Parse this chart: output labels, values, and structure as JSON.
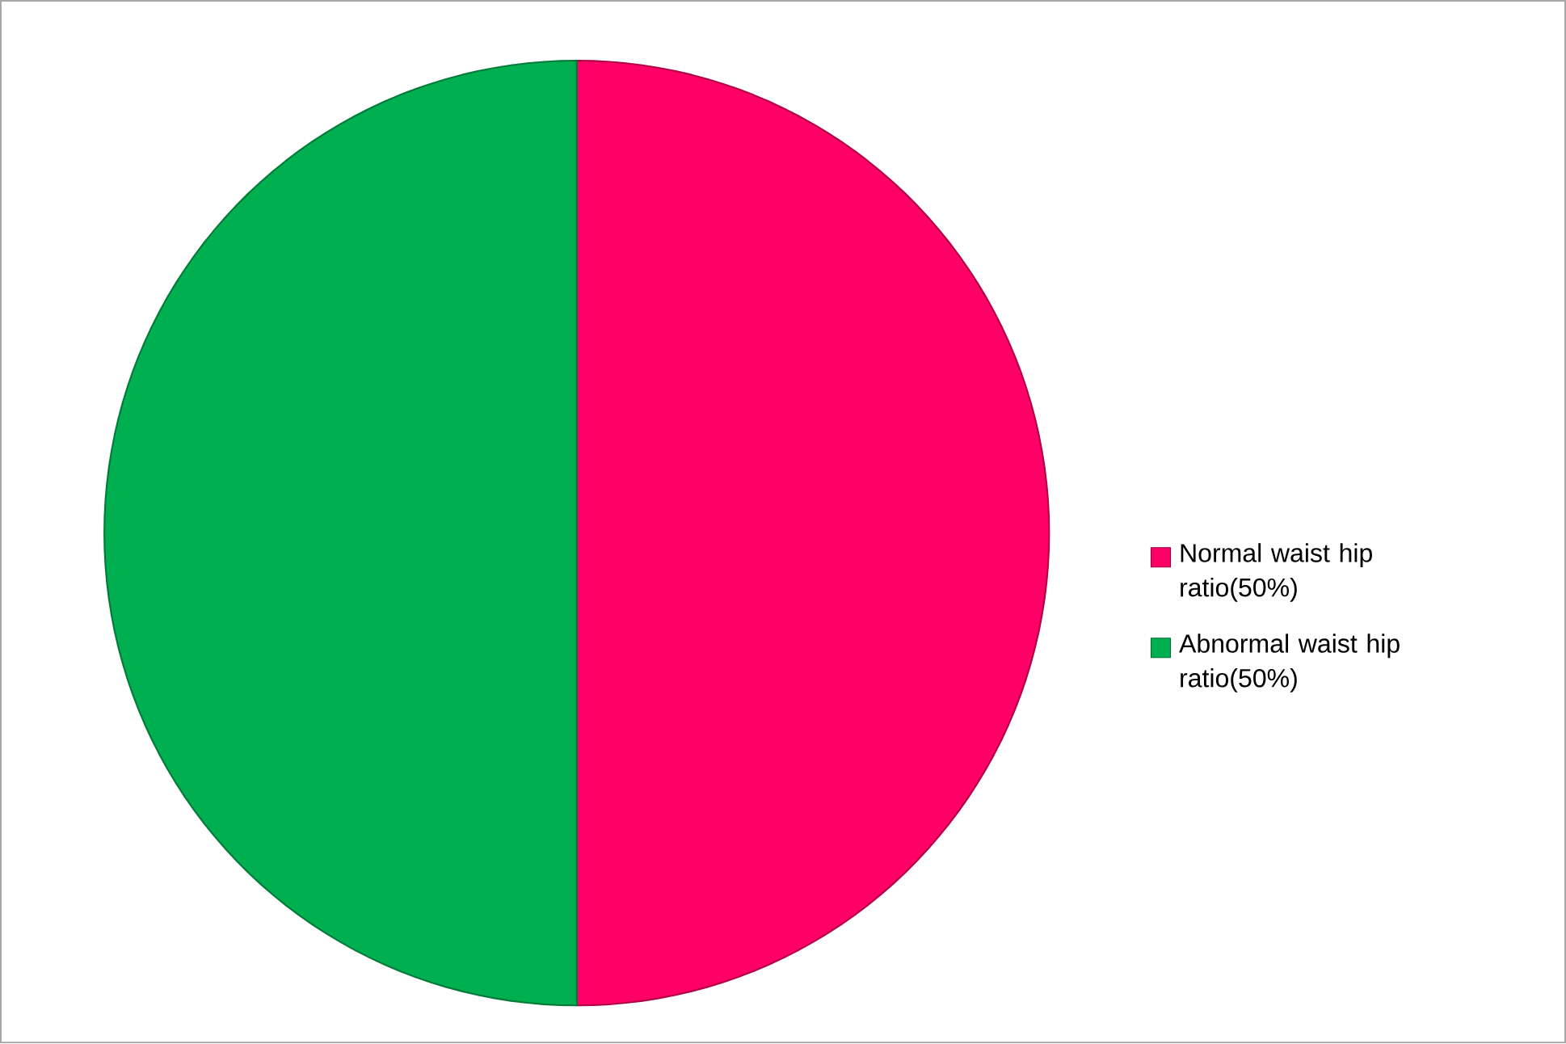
{
  "chart_data": {
    "type": "pie",
    "categories": [
      "Normal waist hip ratio(50%)",
      "Abnormal waist hip ratio(50%)"
    ],
    "values": [
      50,
      50
    ],
    "colors": [
      "#ff0066",
      "#00b050"
    ],
    "legend": "right"
  }
}
